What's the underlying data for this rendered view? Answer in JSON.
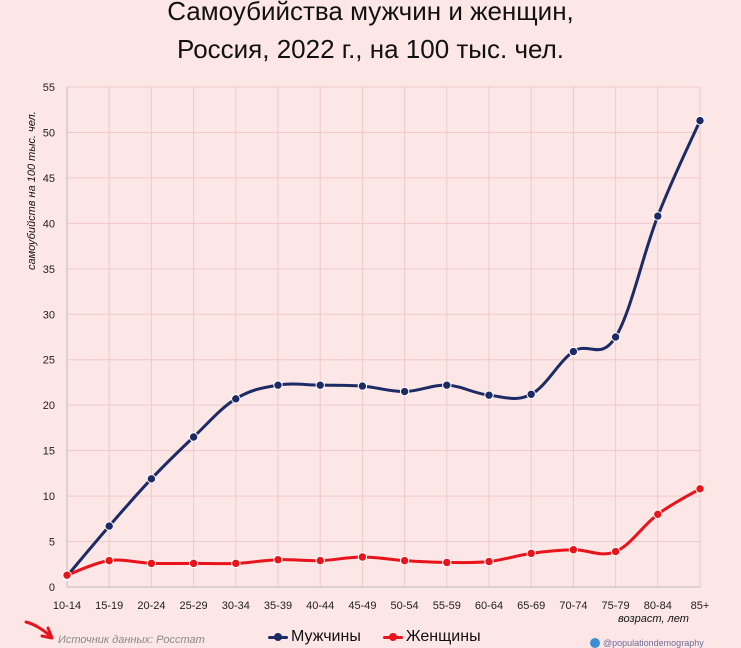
{
  "chart_data": {
    "type": "line",
    "title": "Самоубийства мужчин и женщин,",
    "subtitle": "Россия, 2022 г., на 100 тыс. чел.",
    "ylabel": "самоубийств на 100 тыс. чел.",
    "xlabel": "возраст, лет",
    "categories": [
      "10-14",
      "15-19",
      "20-24",
      "25-29",
      "30-34",
      "35-39",
      "40-44",
      "45-49",
      "50-54",
      "55-59",
      "60-64",
      "65-69",
      "70-74",
      "75-79",
      "80-84",
      "85+"
    ],
    "ylim": [
      0,
      55
    ],
    "yticks": [
      "0",
      "5",
      "10",
      "15",
      "20",
      "25",
      "30",
      "35",
      "40",
      "45",
      "50",
      "55"
    ],
    "grid": true,
    "legend_position": "bottom",
    "series": [
      {
        "name": "Мужчины",
        "color": "#1c2a66",
        "values": [
          1.2,
          6.7,
          11.9,
          16.5,
          20.7,
          22.2,
          22.2,
          22.1,
          21.5,
          22.2,
          21.1,
          21.2,
          25.9,
          27.5,
          40.8,
          51.3
        ]
      },
      {
        "name": "Женщины",
        "color": "#e8141b",
        "values": [
          1.3,
          2.9,
          2.6,
          2.6,
          2.6,
          3.0,
          2.9,
          3.3,
          2.9,
          2.7,
          2.8,
          3.7,
          4.1,
          3.9,
          8.0,
          10.8
        ]
      }
    ]
  },
  "footer": {
    "source": "Источник данных: Росстат",
    "credit": "@populationdemography"
  },
  "icons": {
    "arrow": "red-arrow-icon",
    "telegram": "telegram-icon"
  }
}
